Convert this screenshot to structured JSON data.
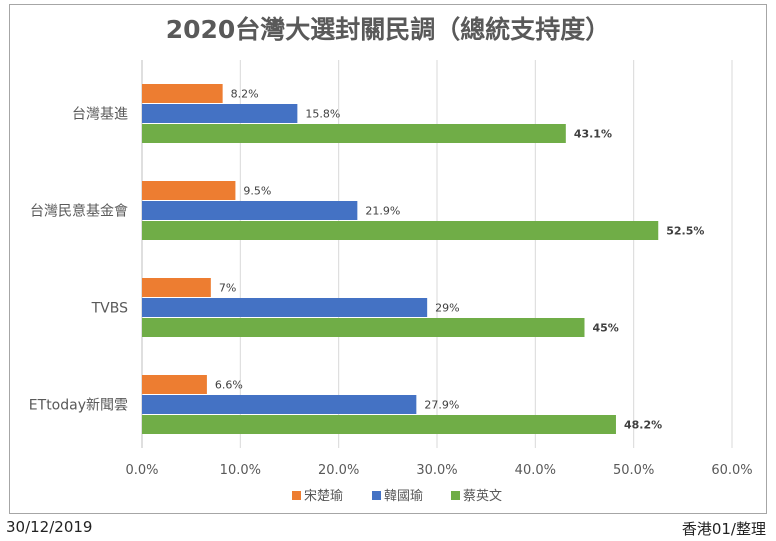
{
  "title": "2020台灣大選封關民調（總統支持度）",
  "footer": {
    "date": "30/12/2019",
    "source": "香港01/整理"
  },
  "colors": {
    "soong": "#ed7d31",
    "han": "#4472c4",
    "tsai": "#70ad47",
    "grid": "#d9d9d9",
    "text": "#595959"
  },
  "chart_data": {
    "type": "bar",
    "orientation": "horizontal",
    "title": "2020台灣大選封關民調（總統支持度）",
    "categories": [
      "台灣基進",
      "台灣民意基金會",
      "TVBS",
      "ETtoday新聞雲"
    ],
    "series": [
      {
        "name": "宋楚瑜",
        "values": [
          8.2,
          9.5,
          7,
          6.6
        ],
        "labels": [
          "8.2%",
          "9.5%",
          "7%",
          "6.6%"
        ],
        "color": "#ed7d31",
        "bold": false
      },
      {
        "name": "韓國瑜",
        "values": [
          15.8,
          21.9,
          29,
          27.9
        ],
        "labels": [
          "15.8%",
          "21.9%",
          "29%",
          "27.9%"
        ],
        "color": "#4472c4",
        "bold": false
      },
      {
        "name": "蔡英文",
        "values": [
          43.1,
          52.5,
          45,
          48.2
        ],
        "labels": [
          "43.1%",
          "52.5%",
          "45%",
          "48.2%"
        ],
        "color": "#70ad47",
        "bold": true
      }
    ],
    "xlim": [
      0,
      60
    ],
    "xticks": [
      0,
      10,
      20,
      30,
      40,
      50,
      60
    ],
    "xtick_labels": [
      "0.0%",
      "10.0%",
      "20.0%",
      "30.0%",
      "40.0%",
      "50.0%",
      "60.0%"
    ],
    "grid": true,
    "legend_position": "bottom"
  }
}
